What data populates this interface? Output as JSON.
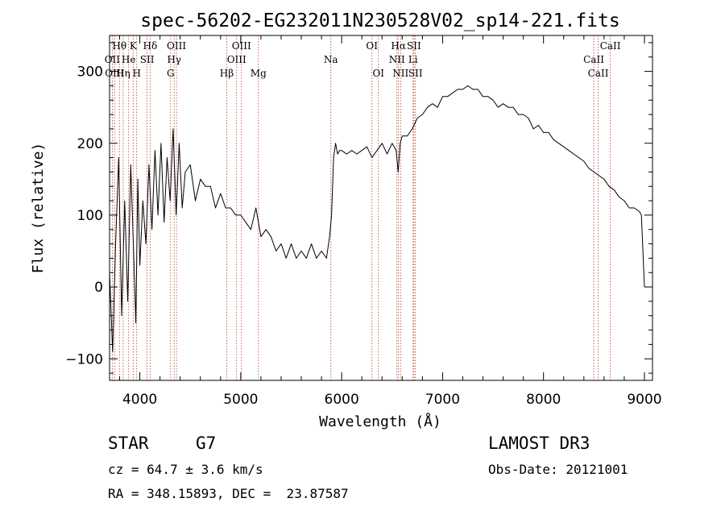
{
  "chart_data": {
    "type": "line",
    "title": "spec-56202-EG232011N230528V02_sp14-221.fits",
    "xlabel": "Wavelength (Å)",
    "ylabel": "Flux (relative)",
    "xlim": [
      3700,
      9080
    ],
    "ylim": [
      -130,
      350
    ],
    "xticks": [
      4000,
      5000,
      6000,
      7000,
      8000,
      9000
    ],
    "xtick_labels": [
      "4000",
      "5000",
      "6000",
      "7000",
      "8000",
      "9000"
    ],
    "yticks": [
      -100,
      0,
      100,
      200,
      300
    ],
    "ytick_labels": [
      "−100",
      "0",
      "100",
      "200",
      "300"
    ],
    "grid": false,
    "series": [
      {
        "name": "spectrum",
        "x": [
          3700,
          3730,
          3760,
          3790,
          3820,
          3850,
          3880,
          3910,
          3940,
          3960,
          3980,
          4000,
          4030,
          4060,
          4090,
          4120,
          4150,
          4180,
          4210,
          4240,
          4270,
          4300,
          4330,
          4360,
          4390,
          4420,
          4450,
          4500,
          4550,
          4600,
          4650,
          4700,
          4750,
          4800,
          4850,
          4900,
          4950,
          5000,
          5050,
          5100,
          5150,
          5200,
          5250,
          5300,
          5350,
          5400,
          5450,
          5500,
          5550,
          5600,
          5650,
          5700,
          5750,
          5800,
          5850,
          5880,
          5900,
          5920,
          5940,
          5960,
          5980,
          6000,
          6050,
          6100,
          6150,
          6200,
          6250,
          6300,
          6350,
          6400,
          6450,
          6500,
          6540,
          6560,
          6580,
          6600,
          6650,
          6700,
          6750,
          6800,
          6850,
          6900,
          6950,
          7000,
          7050,
          7100,
          7150,
          7200,
          7250,
          7300,
          7350,
          7400,
          7450,
          7500,
          7550,
          7600,
          7650,
          7700,
          7750,
          7800,
          7850,
          7900,
          7950,
          8000,
          8050,
          8100,
          8150,
          8200,
          8250,
          8300,
          8350,
          8400,
          8450,
          8500,
          8550,
          8600,
          8650,
          8700,
          8750,
          8800,
          8850,
          8900,
          8950,
          8970,
          8985,
          9000
        ],
        "y": [
          20,
          -90,
          60,
          180,
          -40,
          120,
          -20,
          170,
          40,
          -50,
          150,
          30,
          120,
          60,
          170,
          80,
          190,
          100,
          200,
          90,
          180,
          120,
          220,
          100,
          200,
          110,
          160,
          170,
          120,
          150,
          140,
          140,
          110,
          130,
          110,
          110,
          100,
          100,
          90,
          80,
          110,
          70,
          80,
          70,
          50,
          60,
          40,
          60,
          40,
          50,
          40,
          60,
          40,
          50,
          40,
          70,
          100,
          180,
          200,
          185,
          190,
          190,
          185,
          190,
          185,
          190,
          195,
          180,
          190,
          200,
          185,
          200,
          190,
          160,
          200,
          210,
          210,
          220,
          235,
          240,
          250,
          255,
          250,
          265,
          265,
          270,
          275,
          275,
          280,
          275,
          275,
          265,
          265,
          260,
          250,
          255,
          250,
          250,
          240,
          240,
          235,
          220,
          225,
          215,
          215,
          205,
          200,
          195,
          190,
          185,
          180,
          175,
          165,
          160,
          155,
          150,
          140,
          135,
          125,
          120,
          110,
          110,
          105,
          100,
          50,
          0
        ]
      }
    ],
    "line_labels": [
      {
        "text": "Hθ",
        "wavelength": 3798,
        "row": 1
      },
      {
        "text": "OII",
        "wavelength": 3727,
        "row": 2
      },
      {
        "text": "OIII",
        "wavelength": 3750,
        "row": 3
      },
      {
        "text": "K",
        "wavelength": 3934,
        "row": 1
      },
      {
        "text": "He",
        "wavelength": 3889,
        "row": 2
      },
      {
        "text": "Hη",
        "wavelength": 3835,
        "row": 3
      },
      {
        "text": "H",
        "wavelength": 3969,
        "row": 3
      },
      {
        "text": "Hδ",
        "wavelength": 4102,
        "row": 1
      },
      {
        "text": "SII",
        "wavelength": 4072,
        "row": 2
      },
      {
        "text": "OIII",
        "wavelength": 4363,
        "row": 1
      },
      {
        "text": "Hγ",
        "wavelength": 4340,
        "row": 2
      },
      {
        "text": "G",
        "wavelength": 4305,
        "row": 3
      },
      {
        "text": "OIII",
        "wavelength": 5007,
        "row": 1
      },
      {
        "text": "OIII",
        "wavelength": 4959,
        "row": 2
      },
      {
        "text": "Hβ",
        "wavelength": 4861,
        "row": 3
      },
      {
        "text": "Mg",
        "wavelength": 5175,
        "row": 3
      },
      {
        "text": "Na",
        "wavelength": 5893,
        "row": 2
      },
      {
        "text": "OI",
        "wavelength": 6300,
        "row": 1
      },
      {
        "text": "OI",
        "wavelength": 6364,
        "row": 3
      },
      {
        "text": "Hα",
        "wavelength": 6563,
        "row": 1
      },
      {
        "text": "SII",
        "wavelength": 6716,
        "row": 1
      },
      {
        "text": "NII",
        "wavelength": 6548,
        "row": 2
      },
      {
        "text": "Li",
        "wavelength": 6708,
        "row": 2
      },
      {
        "text": "NII",
        "wavelength": 6584,
        "row": 3
      },
      {
        "text": "SII",
        "wavelength": 6731,
        "row": 3
      },
      {
        "text": "CaII",
        "wavelength": 8662,
        "row": 1
      },
      {
        "text": "CaII",
        "wavelength": 8498,
        "row": 2
      },
      {
        "text": "CaII",
        "wavelength": 8542,
        "row": 3
      }
    ],
    "line_markers": [
      3727,
      3750,
      3798,
      3835,
      3889,
      3934,
      3969,
      4072,
      4102,
      4305,
      4340,
      4363,
      4861,
      4959,
      5007,
      5175,
      5893,
      6300,
      6364,
      6548,
      6563,
      6584,
      6708,
      6716,
      6731,
      8498,
      8542,
      8662
    ]
  },
  "info": {
    "object_class": "STAR",
    "subclass": "G7",
    "survey": "LAMOST DR3",
    "redshift_line": "cz = 64.7 ± 3.6 km/s",
    "obs_date_line": "Obs-Date: 20121001",
    "coords_line": "RA = 348.15893, DEC =  23.87587"
  },
  "colors": {
    "spectrum": "#000000",
    "line_marker": "#c0392b",
    "axes": "#000000"
  }
}
